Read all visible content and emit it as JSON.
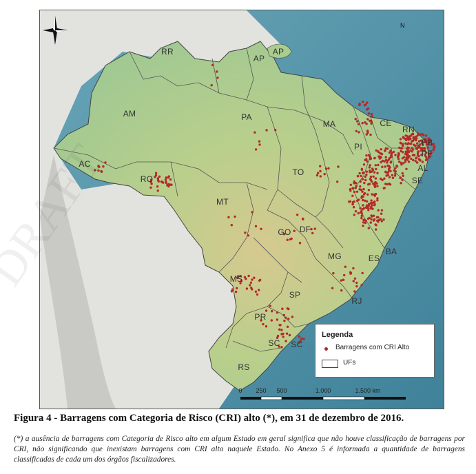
{
  "map": {
    "states": [
      "RR",
      "AP",
      "AP",
      "AM",
      "PA",
      "MA",
      "CE",
      "RN",
      "PB",
      "PE",
      "AL",
      "SE",
      "PI",
      "AC",
      "RO",
      "TO",
      "MT",
      "BA",
      "GO",
      "DF",
      "MG",
      "ES",
      "MS",
      "SP",
      "RJ",
      "PR",
      "SC",
      "SC",
      "RS"
    ],
    "north_label": "N",
    "legend": {
      "title": "Legenda",
      "dam_label": "Barragens com CRI Alto",
      "uf_label": "UFs",
      "dot_color": "#b22a2a"
    },
    "scale": {
      "ticks": [
        "0",
        "250",
        "500",
        "1.000",
        "1.500 km"
      ]
    },
    "colors": {
      "ocean": "#4f8fa3",
      "land_outside": "#e3e3e1",
      "dam_dot": "#b22a2a"
    }
  },
  "caption": {
    "title": "Figura 4 - Barragens com Categoria de Risco (CRI) alto (*), em 31 de dezembro de 2016.",
    "note": "(*) a ausência de barragens com Categoria de Risco alto em algum Estado em geral significa que não houve classificação de barragens por CRI, não significando que inexistam barragens com CRI alto naquele Estado. No Anexo 5 é informada a quantidade de barragens classificadas de cada um dos órgãos fiscalizadores."
  }
}
